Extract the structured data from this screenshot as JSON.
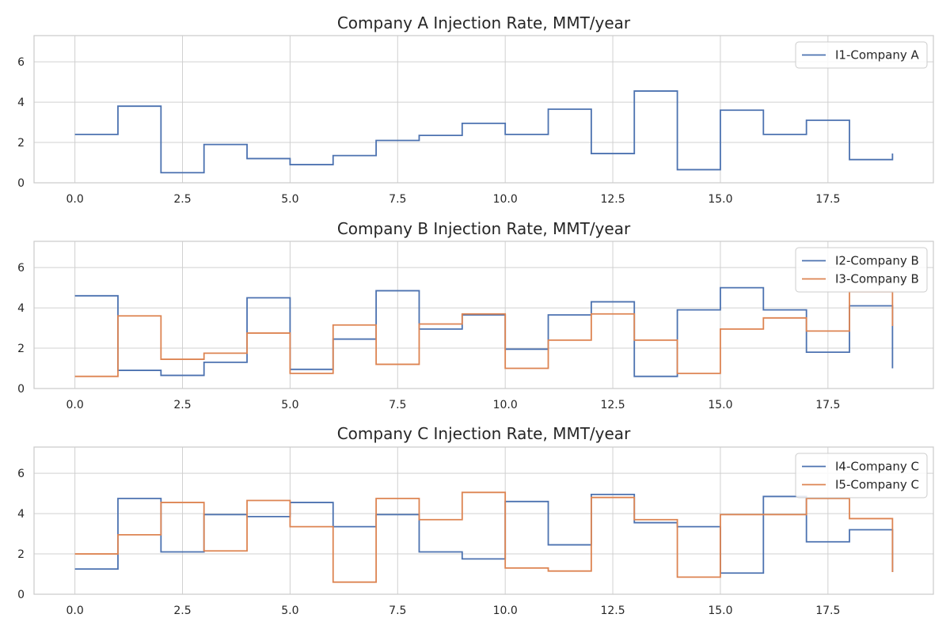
{
  "chart_data": [
    {
      "type": "line",
      "step": "post",
      "title": "Company A Injection Rate, MMT/year",
      "xlabel": "",
      "ylabel": "",
      "xlim": [
        -0.95,
        19.95
      ],
      "ylim": [
        0,
        7.3
      ],
      "xticks": [
        0.0,
        2.5,
        5.0,
        7.5,
        10.0,
        12.5,
        15.0,
        17.5
      ],
      "xtick_labels": [
        "0.0",
        "2.5",
        "5.0",
        "7.5",
        "10.0",
        "12.5",
        "15.0",
        "17.5"
      ],
      "yticks": [
        0,
        2,
        4,
        6
      ],
      "ytick_labels": [
        "0",
        "2",
        "4",
        "6"
      ],
      "grid": true,
      "legend_position": "top-right",
      "x": [
        0,
        1,
        2,
        3,
        4,
        5,
        6,
        7,
        8,
        9,
        10,
        11,
        12,
        13,
        14,
        15,
        16,
        17,
        18,
        19
      ],
      "series": [
        {
          "name": "I1-Company A",
          "color": "#4C72B0",
          "values": [
            2.4,
            3.8,
            0.5,
            1.9,
            1.2,
            0.9,
            1.35,
            2.1,
            2.35,
            2.95,
            2.4,
            3.65,
            1.45,
            4.55,
            0.65,
            3.6,
            2.4,
            3.1,
            1.15,
            1.45
          ]
        }
      ]
    },
    {
      "type": "line",
      "step": "post",
      "title": "Company B Injection Rate, MMT/year",
      "xlabel": "",
      "ylabel": "",
      "xlim": [
        -0.95,
        19.95
      ],
      "ylim": [
        0,
        7.3
      ],
      "xticks": [
        0.0,
        2.5,
        5.0,
        7.5,
        10.0,
        12.5,
        15.0,
        17.5
      ],
      "xtick_labels": [
        "0.0",
        "2.5",
        "5.0",
        "7.5",
        "10.0",
        "12.5",
        "15.0",
        "17.5"
      ],
      "yticks": [
        0,
        2,
        4,
        6
      ],
      "ytick_labels": [
        "0",
        "2",
        "4",
        "6"
      ],
      "grid": true,
      "legend_position": "top-right",
      "x": [
        0,
        1,
        2,
        3,
        4,
        5,
        6,
        7,
        8,
        9,
        10,
        11,
        12,
        13,
        14,
        15,
        16,
        17,
        18,
        19
      ],
      "series": [
        {
          "name": "I2-Company B",
          "color": "#4C72B0",
          "values": [
            4.6,
            0.9,
            0.65,
            1.3,
            4.5,
            0.95,
            2.45,
            4.85,
            2.95,
            3.65,
            1.95,
            3.65,
            4.3,
            0.6,
            3.9,
            5.0,
            3.9,
            1.8,
            4.1,
            1.0
          ]
        },
        {
          "name": "I3-Company B",
          "color": "#DD8452",
          "values": [
            0.6,
            3.6,
            1.45,
            1.75,
            2.75,
            0.75,
            3.15,
            1.2,
            3.2,
            3.7,
            1.0,
            2.4,
            3.7,
            2.4,
            0.75,
            2.95,
            3.5,
            2.85,
            4.8,
            3.1
          ]
        }
      ]
    },
    {
      "type": "line",
      "step": "post",
      "title": "Company C Injection Rate, MMT/year",
      "xlabel": "",
      "ylabel": "",
      "xlim": [
        -0.95,
        19.95
      ],
      "ylim": [
        0,
        7.3
      ],
      "xticks": [
        0.0,
        2.5,
        5.0,
        7.5,
        10.0,
        12.5,
        15.0,
        17.5
      ],
      "xtick_labels": [
        "0.0",
        "2.5",
        "5.0",
        "7.5",
        "10.0",
        "12.5",
        "15.0",
        "17.5"
      ],
      "yticks": [
        0,
        2,
        4,
        6
      ],
      "ytick_labels": [
        "0",
        "2",
        "4",
        "6"
      ],
      "grid": true,
      "legend_position": "top-right",
      "x": [
        0,
        1,
        2,
        3,
        4,
        5,
        6,
        7,
        8,
        9,
        10,
        11,
        12,
        13,
        14,
        15,
        16,
        17,
        18,
        19
      ],
      "series": [
        {
          "name": "I4-Company C",
          "color": "#4C72B0",
          "values": [
            1.25,
            4.75,
            2.1,
            3.95,
            3.85,
            4.55,
            3.35,
            3.95,
            2.1,
            1.75,
            4.6,
            2.45,
            4.95,
            3.55,
            3.35,
            1.05,
            4.85,
            2.6,
            3.2,
            1.1
          ]
        },
        {
          "name": "I5-Company C",
          "color": "#DD8452",
          "values": [
            2.0,
            2.95,
            4.55,
            2.15,
            4.65,
            3.35,
            0.6,
            4.75,
            3.7,
            5.05,
            1.3,
            1.15,
            4.8,
            3.7,
            0.85,
            3.95,
            3.95,
            4.75,
            3.75,
            1.1
          ]
        }
      ]
    }
  ]
}
